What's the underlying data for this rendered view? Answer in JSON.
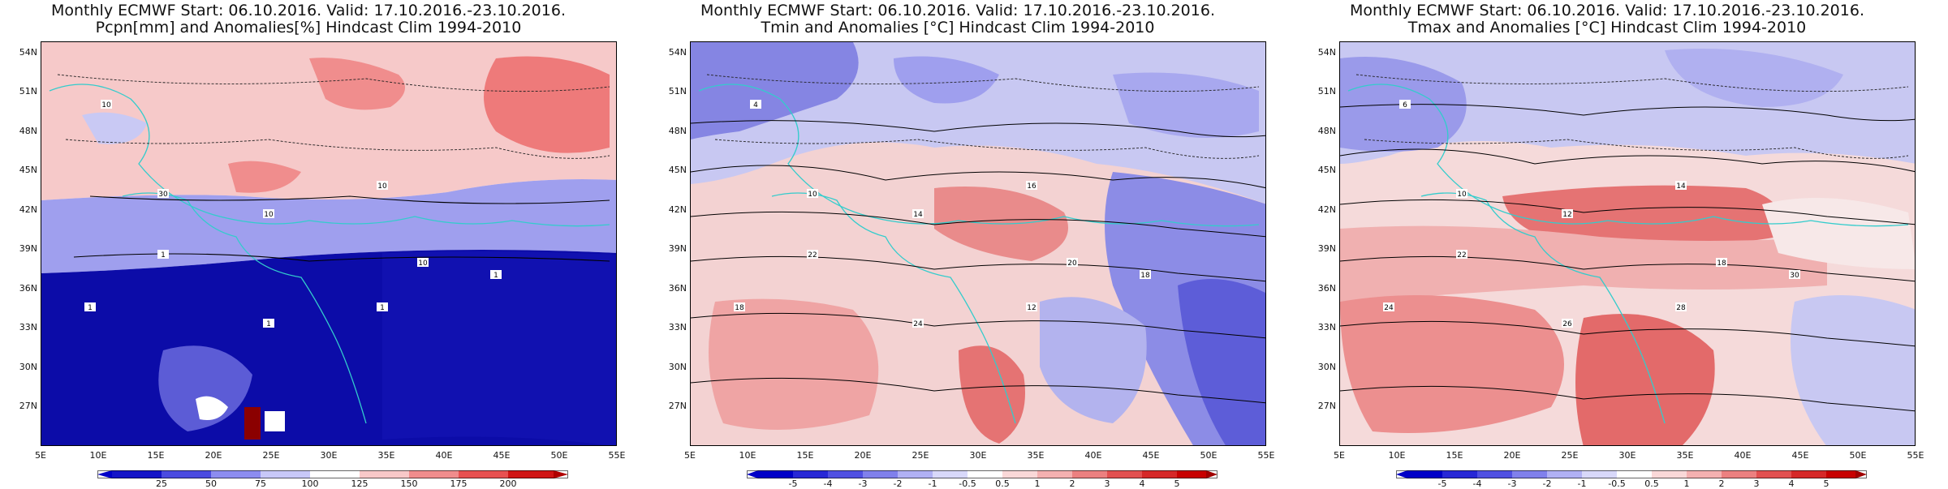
{
  "panels": [
    {
      "title": "Monthly ECMWF Start: 06.10.2016. Valid: 17.10.2016.-23.10.2016.",
      "subtitle": "Pcpn[mm] and Anomalies[%] Hindcast Clim 1994-2010",
      "colorbar_labels": [
        "25",
        "50",
        "75",
        "100",
        "125",
        "150",
        "175",
        "200"
      ],
      "contour_labels": [
        "10",
        "30",
        "10",
        "10",
        "10",
        "1",
        "1",
        "1",
        "1",
        "1"
      ]
    },
    {
      "title": "Monthly ECMWF Start: 06.10.2016. Valid: 17.10.2016.-23.10.2016.",
      "subtitle": "Tmin and Anomalies [°C] Hindcast Clim 1994-2010",
      "colorbar_labels": [
        "-5",
        "-4",
        "-3",
        "-2",
        "-1",
        "-0.5",
        "0.5",
        "1",
        "2",
        "3",
        "4",
        "5"
      ],
      "contour_labels": [
        "4",
        "10",
        "14",
        "16",
        "20",
        "22",
        "18",
        "24",
        "12",
        "18"
      ]
    },
    {
      "title": "Monthly ECMWF Start: 06.10.2016. Valid: 17.10.2016.-23.10.2016.",
      "subtitle": "Tmax and Anomalies [°C] Hindcast Clim 1994-2010",
      "colorbar_labels": [
        "-5",
        "-4",
        "-3",
        "-2",
        "-1",
        "-0.5",
        "0.5",
        "1",
        "2",
        "3",
        "4",
        "5"
      ],
      "contour_labels": [
        "6",
        "10",
        "12",
        "14",
        "18",
        "22",
        "24",
        "26",
        "28",
        "30"
      ]
    }
  ],
  "axes": {
    "lat_labels": [
      "54N",
      "51N",
      "48N",
      "45N",
      "42N",
      "39N",
      "36N",
      "33N",
      "30N",
      "27N"
    ],
    "lon_labels": [
      "5E",
      "10E",
      "15E",
      "20E",
      "25E",
      "30E",
      "35E",
      "40E",
      "45E",
      "50E",
      "55E"
    ]
  },
  "colors": {
    "coastline": "#33cccc",
    "border": "#222222",
    "contour": "#000000"
  }
}
